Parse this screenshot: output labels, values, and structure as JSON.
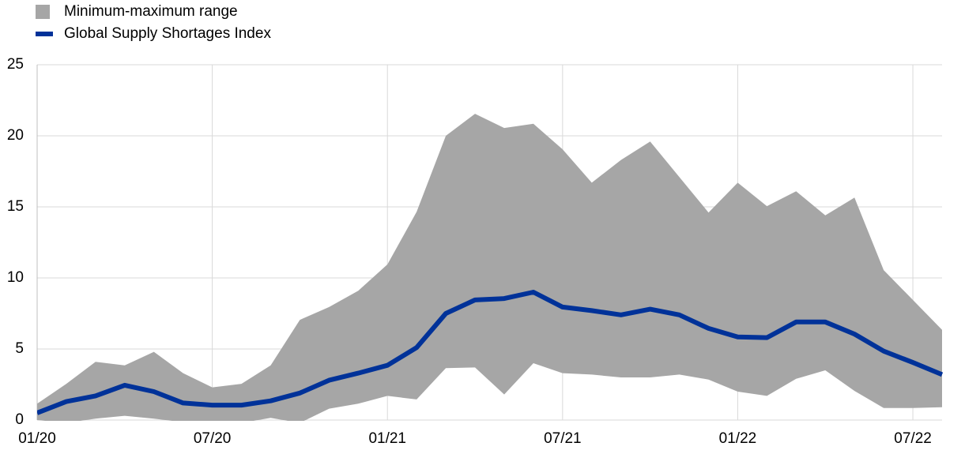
{
  "chart_data": {
    "type": "line",
    "categories": [
      "01/20",
      null,
      null,
      null,
      null,
      null,
      "07/20",
      null,
      null,
      null,
      null,
      null,
      "01/21",
      null,
      null,
      null,
      null,
      null,
      "07/21",
      null,
      null,
      null,
      null,
      null,
      "01/22",
      null,
      null,
      null,
      null,
      null,
      "07/22",
      null
    ],
    "series": [
      {
        "name": "Minimum-maximum range",
        "type": "range",
        "color": "#a6a6a6",
        "high": [
          1.15,
          2.55,
          4.1,
          3.85,
          4.8,
          3.3,
          2.3,
          2.55,
          3.85,
          7.05,
          7.95,
          9.1,
          10.95,
          14.65,
          20.0,
          21.55,
          20.55,
          20.85,
          19.05,
          16.7,
          18.3,
          19.6,
          17.1,
          14.6,
          16.7,
          15.05,
          16.1,
          14.4,
          15.65,
          10.55,
          8.45,
          6.35
        ],
        "low": [
          0,
          -0.2,
          0.1,
          0.3,
          0.1,
          -0.15,
          -0.2,
          -0.2,
          0.15,
          -0.2,
          0.8,
          1.15,
          1.7,
          1.45,
          3.65,
          3.7,
          1.8,
          4.0,
          3.3,
          3.2,
          3.0,
          3.0,
          3.2,
          2.85,
          2.0,
          1.7,
          2.9,
          3.5,
          2.05,
          0.85,
          0.85,
          0.9
        ]
      },
      {
        "name": "Global Supply Shortages Index",
        "type": "line",
        "color": "#003299",
        "values": [
          0.5,
          1.3,
          1.7,
          2.45,
          2.0,
          1.2,
          1.05,
          1.05,
          1.35,
          1.9,
          2.8,
          3.3,
          3.85,
          5.1,
          7.5,
          8.45,
          8.55,
          9.0,
          7.95,
          7.7,
          7.4,
          7.8,
          7.4,
          6.45,
          5.85,
          5.8,
          6.9,
          6.9,
          6.05,
          4.85,
          4.05,
          3.2
        ]
      }
    ],
    "ylim": [
      0,
      25
    ],
    "yticks": [
      0,
      5,
      10,
      15,
      20,
      25
    ],
    "grid": true
  }
}
